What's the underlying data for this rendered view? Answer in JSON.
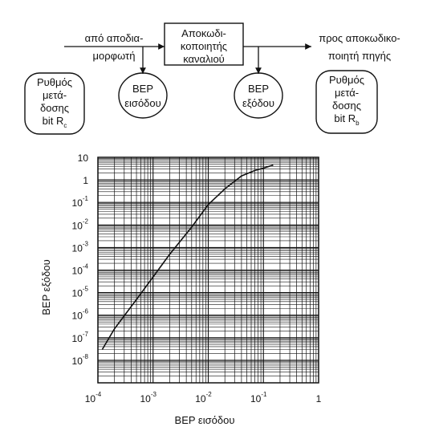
{
  "block_diagram": {
    "decoder_box_label": [
      "Αποκωδι-",
      "κοποιητής",
      "καναλιού"
    ],
    "input_label": [
      "από αποδια-",
      "μορφωτή"
    ],
    "output_label": [
      "προς αποκωδικο-",
      "ποιητή πηγής"
    ],
    "input_ber_label": [
      "BEP",
      "εισόδου"
    ],
    "output_ber_label": [
      "BEP",
      "εξόδου"
    ],
    "input_rate_label": [
      "Ρυθμός",
      "μετά-",
      "δοσης",
      "bit R",
      "c"
    ],
    "output_rate_label": [
      "Ρυθμός",
      "μετά-",
      "δοσης",
      "bit R",
      "b"
    ]
  },
  "chart_data": {
    "type": "line",
    "x_scale": "log",
    "y_scale": "log",
    "xlim": [
      0.0001,
      1
    ],
    "ylim": [
      1e-09,
      10
    ],
    "grid": true,
    "xlabel": "BEP εισόδου",
    "ylabel": "BEP εξόδου",
    "x_ticks": [
      {
        "base": "10",
        "exp": "-4"
      },
      {
        "base": "10",
        "exp": "-3"
      },
      {
        "base": "10",
        "exp": "-2"
      },
      {
        "base": "10",
        "exp": "-1"
      },
      {
        "base": "1",
        "exp": ""
      }
    ],
    "y_ticks": [
      {
        "base": "10",
        "exp": ""
      },
      {
        "base": "1",
        "exp": ""
      },
      {
        "base": "10",
        "exp": "-1"
      },
      {
        "base": "10",
        "exp": "-2"
      },
      {
        "base": "10",
        "exp": "-3"
      },
      {
        "base": "10",
        "exp": "-4"
      },
      {
        "base": "10",
        "exp": "-5"
      },
      {
        "base": "10",
        "exp": "-6"
      },
      {
        "base": "10",
        "exp": "-7"
      },
      {
        "base": "10",
        "exp": "-8"
      },
      {
        "base": "",
        "exp": ""
      }
    ],
    "series": [
      {
        "x": [
          0.00012,
          0.0002,
          0.0005,
          0.001,
          0.002,
          0.005,
          0.01,
          0.02,
          0.04,
          0.07,
          0.1,
          0.15
        ],
        "y": [
          3e-08,
          2.5e-07,
          5e-06,
          5e-05,
          0.0005,
          0.008,
          0.08,
          0.4,
          1.5,
          2.6,
          3.3,
          4.5
        ]
      }
    ]
  }
}
